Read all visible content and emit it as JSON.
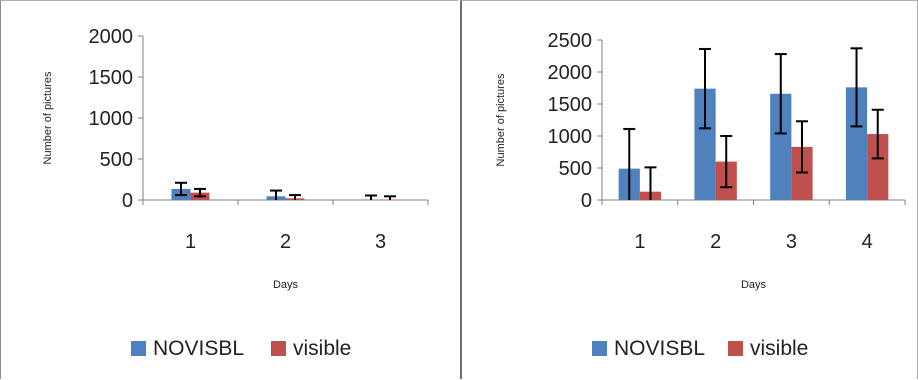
{
  "chart_data": [
    {
      "type": "bar",
      "categories": [
        "1",
        "2",
        "3"
      ],
      "series": [
        {
          "name": "NOVISBL",
          "color": "#4f81bd",
          "values": [
            135,
            45,
            5
          ],
          "errors": [
            75,
            70,
            50
          ]
        },
        {
          "name": "visible",
          "color": "#c0504d",
          "values": [
            90,
            20,
            5
          ],
          "errors": [
            45,
            40,
            40
          ]
        }
      ],
      "xlabel": "Days",
      "ylabel": "Number of pictures",
      "ylim": [
        0,
        2000
      ],
      "yticks": [
        "0",
        "500",
        "1000",
        "1500",
        "2000"
      ],
      "grid": false,
      "legend_position": "bottom"
    },
    {
      "type": "bar",
      "categories": [
        "1",
        "2",
        "3",
        "4"
      ],
      "series": [
        {
          "name": "NOVISBL",
          "color": "#4f81bd",
          "values": [
            490,
            1740,
            1660,
            1760
          ],
          "errors": [
            620,
            620,
            620,
            610
          ]
        },
        {
          "name": "visible",
          "color": "#c0504d",
          "values": [
            130,
            600,
            830,
            1030
          ],
          "errors": [
            380,
            400,
            400,
            380
          ]
        }
      ],
      "xlabel": "Days",
      "ylabel": "Number of pictures",
      "ylim": [
        0,
        2500
      ],
      "yticks": [
        "0",
        "500",
        "1000",
        "1500",
        "2000",
        "2500"
      ],
      "grid": false,
      "legend_position": "bottom"
    }
  ]
}
